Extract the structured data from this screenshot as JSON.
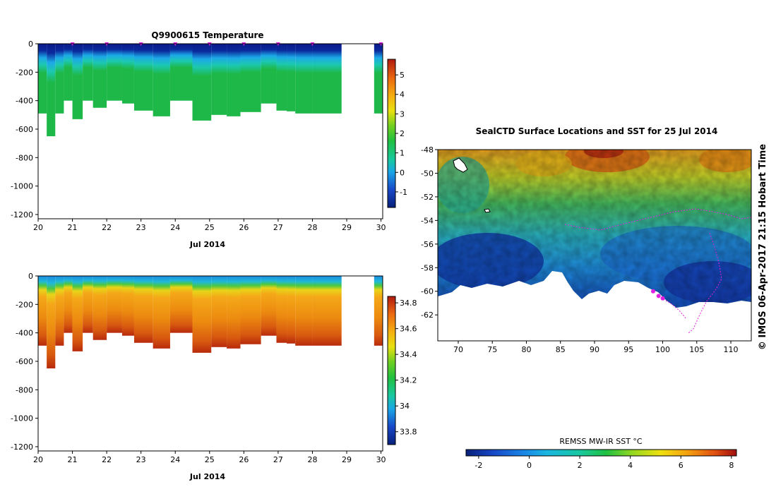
{
  "chart_data": [
    {
      "type": "heatmap",
      "title": "Q9900615  Temperature",
      "xlabel": "Jul 2014",
      "ylabel": "",
      "x_ticks": [
        "20",
        "21",
        "22",
        "23",
        "24",
        "25",
        "26",
        "27",
        "28",
        "29",
        "30"
      ],
      "y_ticks": [
        "0",
        "-200",
        "-400",
        "-600",
        "-800",
        "-1000",
        "-1200"
      ],
      "xlim": [
        20,
        30.05
      ],
      "ylim": [
        -1230,
        0
      ],
      "colorbar": {
        "min": -1.8,
        "max": 5.8,
        "ticks": [
          "-1",
          "0",
          "1",
          "2",
          "3",
          "4",
          "5"
        ]
      },
      "surface_markers_day": [
        21,
        22,
        23,
        24,
        25,
        26,
        27,
        28,
        30
      ],
      "profiles": [
        {
          "day": 20.0,
          "depth": -490
        },
        {
          "day": 20.25,
          "depth": -650
        },
        {
          "day": 20.5,
          "depth": -490
        },
        {
          "day": 20.75,
          "depth": -400
        },
        {
          "day": 21.0,
          "depth": -530
        },
        {
          "day": 21.3,
          "depth": -400
        },
        {
          "day": 21.6,
          "depth": -450
        },
        {
          "day": 22.0,
          "depth": -400
        },
        {
          "day": 22.45,
          "depth": -420
        },
        {
          "day": 22.8,
          "depth": -470
        },
        {
          "day": 23.35,
          "depth": -510
        },
        {
          "day": 23.85,
          "depth": -400
        },
        {
          "day": 24.5,
          "depth": -540
        },
        {
          "day": 25.05,
          "depth": -500
        },
        {
          "day": 25.5,
          "depth": -510
        },
        {
          "day": 25.9,
          "depth": -480
        },
        {
          "day": 26.5,
          "depth": -420
        },
        {
          "day": 26.95,
          "depth": -470
        },
        {
          "day": 27.25,
          "depth": -475
        },
        {
          "day": 27.5,
          "depth": -490
        },
        {
          "day": 28.0,
          "depth": -490
        },
        {
          "day": 29.8,
          "depth": -490
        }
      ],
      "series_gap": [
        28.85,
        29.75
      ]
    },
    {
      "type": "heatmap",
      "title": "",
      "xlabel": "Jul 2014",
      "ylabel": "",
      "x_ticks": [
        "20",
        "21",
        "22",
        "23",
        "24",
        "25",
        "26",
        "27",
        "28",
        "29",
        "30"
      ],
      "y_ticks": [
        "0",
        "-200",
        "-400",
        "-600",
        "-800",
        "-1000",
        "-1200"
      ],
      "xlim": [
        20,
        30.05
      ],
      "ylim": [
        -1230,
        0
      ],
      "colorbar": {
        "min": 33.7,
        "max": 34.85,
        "ticks": [
          "33.8",
          "34",
          "34.2",
          "34.4",
          "34.6",
          "34.8"
        ]
      }
    },
    {
      "type": "heatmap",
      "title": "SealCTD Surface Locations and SST for 25 Jul 2014",
      "xlabel": "",
      "ylabel": "",
      "x_ticks": [
        "70",
        "75",
        "80",
        "85",
        "90",
        "95",
        "100",
        "105",
        "110"
      ],
      "y_ticks": [
        "-48",
        "-50",
        "-52",
        "-54",
        "-56",
        "-58",
        "-60",
        "-62"
      ],
      "xlim": [
        67,
        113
      ],
      "ylim": [
        -64.2,
        -48
      ],
      "colorbar": {
        "label": "REMSS MW-IR SST °C",
        "min": -2.5,
        "max": 8.2,
        "ticks": [
          "-2",
          "0",
          "2",
          "4",
          "6",
          "8"
        ]
      },
      "track_points": [
        {
          "lon": 98.6,
          "lat": -60.0
        },
        {
          "lon": 99.4,
          "lat": -60.4
        },
        {
          "lon": 100.0,
          "lat": -60.6
        }
      ],
      "side_note": "© IMOS 06-Apr-2017 21:15 Hobart Time"
    }
  ]
}
